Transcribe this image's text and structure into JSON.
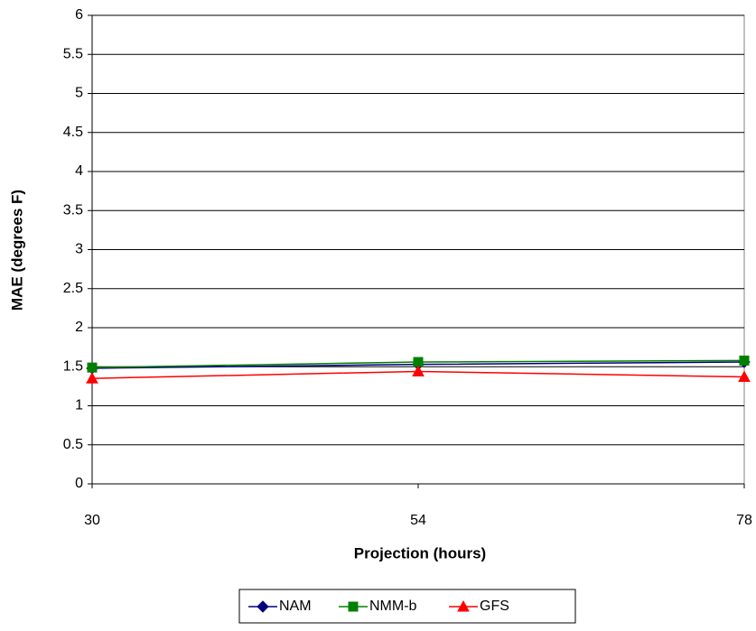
{
  "chart_data": {
    "type": "line",
    "x_label": "Projection (hours)",
    "y_label": "MAE (degrees F)",
    "x": [
      30,
      54,
      78
    ],
    "xlim": [
      30,
      78
    ],
    "xticks": [
      30,
      54,
      78
    ],
    "ylim": [
      0,
      6
    ],
    "yticks": [
      0,
      0.5,
      1,
      1.5,
      2,
      2.5,
      3,
      3.5,
      4,
      4.5,
      5,
      5.5,
      6
    ],
    "grid": true,
    "legend": "bottom",
    "series": [
      {
        "name": "NAM",
        "color": "#000080",
        "marker": "diamond",
        "values": [
          1.48,
          1.53,
          1.56
        ]
      },
      {
        "name": "NMM-b",
        "color": "#008000",
        "marker": "square",
        "values": [
          1.49,
          1.56,
          1.58
        ]
      },
      {
        "name": "GFS",
        "color": "#ff0000",
        "marker": "triangle",
        "values": [
          1.35,
          1.44,
          1.37
        ]
      }
    ]
  }
}
